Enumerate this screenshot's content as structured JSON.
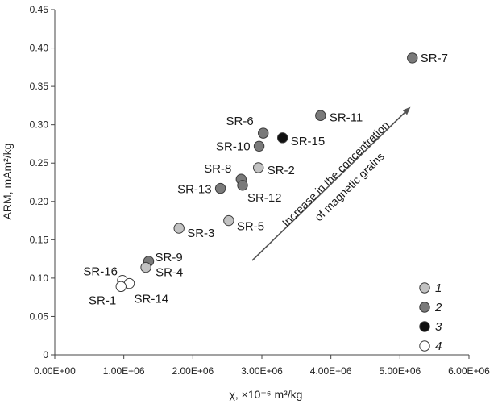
{
  "chart_data": {
    "type": "scatter",
    "xlabel": "χ, ×10⁻⁶ m³/kg",
    "ylabel": "ARM, mAm²/kg",
    "xlim": [
      0,
      6000000
    ],
    "ylim": [
      0,
      0.45
    ],
    "x_ticks": [
      "0.00E+00",
      "1.00E+06",
      "2.00E+06",
      "3.00E+06",
      "4.00E+06",
      "5.00E+06",
      "6.00E+06"
    ],
    "y_ticks": [
      "0",
      "0.05",
      "0.10",
      "0.15",
      "0.20",
      "0.25",
      "0.30",
      "0.35",
      "0.40",
      "0.45"
    ],
    "grid": false,
    "legend_position": "bottom-right",
    "series": [
      {
        "name": "1",
        "color": "#c2c2c2"
      },
      {
        "name": "2",
        "color": "#7a7a7a"
      },
      {
        "name": "3",
        "color": "#111111"
      },
      {
        "name": "4",
        "color": "#ffffff"
      }
    ],
    "points": [
      {
        "label": "SR-7",
        "x": 5180000,
        "y": 0.387,
        "group": 1
      },
      {
        "label": "SR-11",
        "x": 3850000,
        "y": 0.312,
        "group": 1
      },
      {
        "label": "SR-6",
        "x": 3020000,
        "y": 0.289,
        "group": 1
      },
      {
        "label": "SR-15",
        "x": 3300000,
        "y": 0.283,
        "group": 2
      },
      {
        "label": "SR-10",
        "x": 2960000,
        "y": 0.272,
        "group": 1
      },
      {
        "label": "SR-2",
        "x": 2950000,
        "y": 0.244,
        "group": 0
      },
      {
        "label": "SR-8",
        "x": 2700000,
        "y": 0.229,
        "group": 1
      },
      {
        "label": "SR-12",
        "x": 2720000,
        "y": 0.221,
        "group": 1
      },
      {
        "label": "SR-13",
        "x": 2400000,
        "y": 0.217,
        "group": 1
      },
      {
        "label": "SR-5",
        "x": 2520000,
        "y": 0.175,
        "group": 0
      },
      {
        "label": "SR-3",
        "x": 1800000,
        "y": 0.165,
        "group": 0
      },
      {
        "label": "SR-9",
        "x": 1360000,
        "y": 0.122,
        "group": 1
      },
      {
        "label": "SR-4",
        "x": 1320000,
        "y": 0.114,
        "group": 0
      },
      {
        "label": "SR-16",
        "x": 980000,
        "y": 0.097,
        "group": 3
      },
      {
        "label": "SR-14",
        "x": 1080000,
        "y": 0.093,
        "group": 3
      },
      {
        "label": "SR-1",
        "x": 960000,
        "y": 0.089,
        "group": 3
      }
    ],
    "annotation": {
      "line1": "Increase in the concentration",
      "line2": "of magnetic grains"
    }
  }
}
